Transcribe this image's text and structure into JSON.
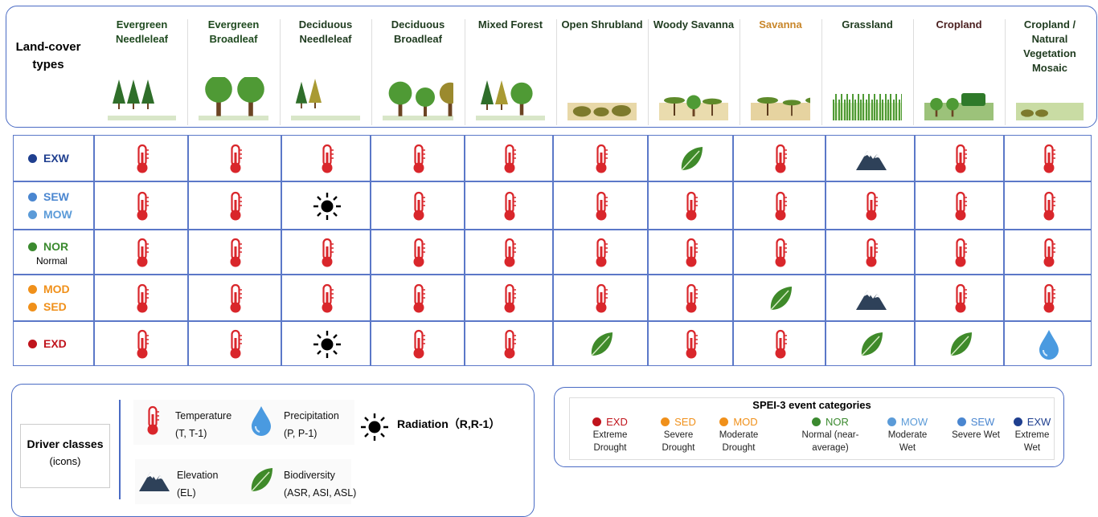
{
  "header": {
    "title": "Land-cover types",
    "columns": [
      "Evergreen Needleleaf",
      "Evergreen Broadleaf",
      "Deciduous Needleleaf",
      "Deciduous Broadleaf",
      "Mixed Forest",
      "Open Shrubland",
      "Woody Savanna",
      "Savanna",
      "Grassland",
      "Cropland",
      "Cropland / Natural Vegetation Mosaic"
    ]
  },
  "table": {
    "rows": [
      {
        "codes": [
          "EXW"
        ]
      },
      {
        "codes": [
          "SEW",
          "MOW"
        ]
      },
      {
        "codes": [
          "NOR"
        ],
        "note": "Normal"
      },
      {
        "codes": [
          "MOD",
          "SED"
        ]
      },
      {
        "codes": [
          "EXD"
        ]
      }
    ]
  },
  "driver_legend": {
    "title": "Driver classes",
    "subtitle": "(icons)",
    "items": [
      {
        "name": "Temperature",
        "detail": "(T, T-1)"
      },
      {
        "name": "Precipitation",
        "detail": "(P, P-1)"
      },
      {
        "name": "Radiation",
        "detail": "（R,R-1）"
      },
      {
        "name": "Elevation",
        "detail": "(EL)"
      },
      {
        "name": "Biodiversity",
        "detail": "(ASR, ASI, ASL)"
      }
    ]
  },
  "spei_legend": {
    "title": "SPEI-3 event categories",
    "items": [
      {
        "code": "EXD",
        "label": "Extreme Drought"
      },
      {
        "code": "SED",
        "label": "Severe Drought"
      },
      {
        "code": "MOD",
        "label": "Moderate Drought"
      },
      {
        "code": "NOR",
        "label": "Normal (near-average)"
      },
      {
        "code": "MOW",
        "label": "Moderate Wet"
      },
      {
        "code": "SEW",
        "label": "Severe Wet"
      },
      {
        "code": "EXW",
        "label": "Extreme Wet"
      }
    ]
  }
}
